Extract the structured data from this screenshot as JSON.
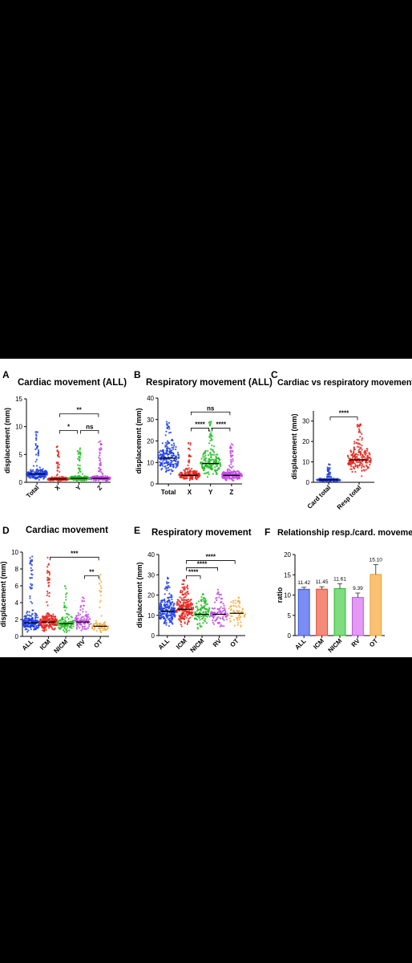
{
  "figure": {
    "panels": [
      {
        "letter": "A",
        "title": "Cardiac movement (ALL)"
      },
      {
        "letter": "B",
        "title": "Respiratory movement (ALL)"
      },
      {
        "letter": "C",
        "title": "Cardiac vs respiratory movement"
      },
      {
        "letter": "D",
        "title": "Cardiac movement"
      },
      {
        "letter": "E",
        "title": "Respiratory movement"
      },
      {
        "letter": "F",
        "title": "Relationship resp./card. movement"
      }
    ]
  },
  "chart_data": [
    {
      "type": "scatter",
      "title": "Cardiac movement (ALL)",
      "ylabel": "displacement (mm)",
      "ylim": [
        0,
        15
      ],
      "yticks": [
        0,
        5,
        10,
        15
      ],
      "categories": [
        "Total",
        "X",
        "Y",
        "Z"
      ],
      "colors": [
        "#1f3fe8",
        "#e8241c",
        "#1fbf1f",
        "#c446e6"
      ],
      "medians": [
        1.5,
        0.6,
        0.7,
        0.7
      ],
      "max": [
        9.5,
        6.5,
        6.5,
        7.8
      ],
      "density": [
        1.0,
        0.85,
        0.85,
        0.85
      ],
      "brackets": [
        {
          "from": 1,
          "to": 3,
          "label": "**",
          "y": 12.3
        },
        {
          "from": 1,
          "to": 2,
          "label": "*",
          "y": 9.3
        },
        {
          "from": 2,
          "to": 3,
          "label": "ns",
          "y": 9.3
        }
      ]
    },
    {
      "type": "scatter",
      "title": "Respiratory movement (ALL)",
      "ylabel": "displacement (mm)",
      "ylim": [
        0,
        40
      ],
      "yticks": [
        0,
        10,
        20,
        30,
        40
      ],
      "categories": [
        "Total",
        "X",
        "Y",
        "Z"
      ],
      "colors": [
        "#1f3fe8",
        "#e8241c",
        "#1fbf1f",
        "#c446e6"
      ],
      "medians": [
        12,
        4,
        9.5,
        4
      ],
      "max": [
        29,
        20,
        29,
        19
      ],
      "density": [
        1.0,
        0.85,
        0.85,
        0.85
      ],
      "brackets": [
        {
          "from": 1,
          "to": 3,
          "label": "ns",
          "y": 33.5
        },
        {
          "from": 1,
          "to": 2,
          "label": "****",
          "y": 26
        },
        {
          "from": 2,
          "to": 3,
          "label": "****",
          "y": 26
        }
      ]
    },
    {
      "type": "scatter",
      "title": "Cardiac vs respiratory movement",
      "ylabel": "displacement (mm)",
      "ylim": [
        0,
        35
      ],
      "yticks": [
        0,
        10,
        20,
        30
      ],
      "categories": [
        "Card total",
        "Resp total"
      ],
      "colors": [
        "#1f3fe8",
        "#e8241c"
      ],
      "medians": [
        1.2,
        11
      ],
      "max": [
        9.5,
        29
      ],
      "density": [
        0.85,
        1.0
      ],
      "brackets": [
        {
          "from": 0,
          "to": 1,
          "label": "****",
          "y": 32
        }
      ]
    },
    {
      "type": "scatter",
      "title": "Cardiac movement",
      "ylabel": "displacement (mm)",
      "ylim": [
        0,
        10
      ],
      "yticks": [
        0,
        2,
        4,
        6,
        8,
        10
      ],
      "categories": [
        "ALL",
        "ICM",
        "NICM",
        "RV",
        "OT"
      ],
      "colors": [
        "#1f3fe8",
        "#e8241c",
        "#1fbf1f",
        "#c446e6",
        "#f5ac3a"
      ],
      "medians": [
        1.6,
        1.7,
        1.5,
        1.7,
        1.2
      ],
      "max": [
        9.5,
        9.5,
        6.0,
        4.8,
        7.5
      ],
      "density": [
        1.0,
        1.0,
        0.55,
        0.45,
        0.3
      ],
      "brackets": [
        {
          "from": 1,
          "to": 4,
          "label": "***",
          "y": 9.4
        },
        {
          "from": 3,
          "to": 4,
          "label": "**",
          "y": 7.2
        }
      ]
    },
    {
      "type": "scatter",
      "title": "Respiratory movement",
      "ylabel": "displacement (mm)",
      "ylim": [
        0,
        40
      ],
      "yticks": [
        0,
        10,
        20,
        30,
        40
      ],
      "categories": [
        "ALL",
        "ICM",
        "NICM",
        "RV",
        "OT"
      ],
      "colors": [
        "#1f3fe8",
        "#e8241c",
        "#1fbf1f",
        "#c446e6",
        "#f5ac3a"
      ],
      "medians": [
        12,
        13,
        10.5,
        10.5,
        11
      ],
      "max": [
        29,
        29,
        21,
        23,
        19
      ],
      "density": [
        1.0,
        1.0,
        0.55,
        0.45,
        0.3
      ],
      "brackets": [
        {
          "from": 1,
          "to": 4,
          "label": "****",
          "y": 37
        },
        {
          "from": 1,
          "to": 3,
          "label": "****",
          "y": 33.5
        },
        {
          "from": 1,
          "to": 2,
          "label": "****",
          "y": 29.5
        }
      ]
    },
    {
      "type": "bar",
      "title": "Relationship resp./card. movement",
      "ylabel": "ratio",
      "ylim": [
        0,
        20
      ],
      "yticks": [
        0,
        5,
        10,
        15,
        20
      ],
      "categories": [
        "ALL",
        "ICM",
        "NICM",
        "RV",
        "OT"
      ],
      "values": [
        11.42,
        11.45,
        11.61,
        9.39,
        15.1
      ],
      "value_labels": [
        "11.42",
        "11.45",
        "11.61",
        "9.39",
        "15.10"
      ],
      "errors": [
        0.5,
        0.6,
        1.2,
        1.1,
        2.4
      ],
      "colors": [
        "#7b8cf2",
        "#f48a7a",
        "#7fdc7f",
        "#e39af5",
        "#f8c174"
      ],
      "edge_colors": [
        "#3d52e8",
        "#e8443a",
        "#2fb82f",
        "#bb55e3",
        "#f0a22e"
      ]
    }
  ]
}
